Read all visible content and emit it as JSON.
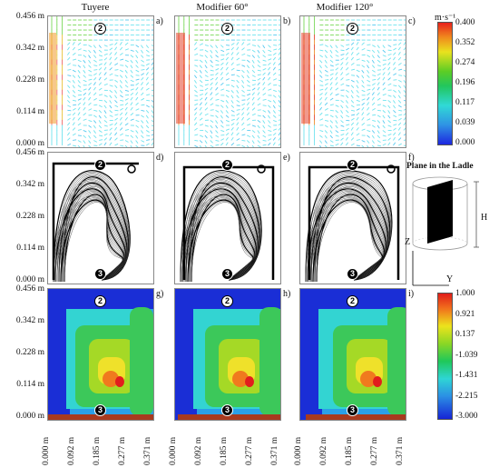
{
  "columns": [
    {
      "title": "Tuyere"
    },
    {
      "title": "Modifier 60°"
    },
    {
      "title": "Modifier 120°"
    }
  ],
  "panel_labels": [
    "a)",
    "b)",
    "c)",
    "d)",
    "e)",
    "f)",
    "g)",
    "h)",
    "i)"
  ],
  "y_ticks": [
    "0.456 m",
    "0.342 m",
    "0.228 m",
    "0.114 m",
    "0.000 m"
  ],
  "x_ticks": [
    "0.000 m",
    "0.092 m",
    "0.185 m",
    "0.277 m",
    "0.371 m"
  ],
  "markers": {
    "top": "2",
    "bottom": "3"
  },
  "velocity_colorbar": {
    "unit": "m·s⁻¹",
    "ticks": [
      "0.400",
      "0.352",
      "0.274",
      "0.196",
      "0.117",
      "0.039",
      "0.000"
    ]
  },
  "bottom_colorbar": {
    "ticks": [
      "1.000",
      "0.921",
      "0.137",
      "-1.039",
      "-1.431",
      "-2.215",
      "-3.000"
    ]
  },
  "ladle_inset": {
    "title": "Plane in the Ladle",
    "height_label": "H",
    "axis_z": "Z",
    "axis_y": "Y"
  }
}
